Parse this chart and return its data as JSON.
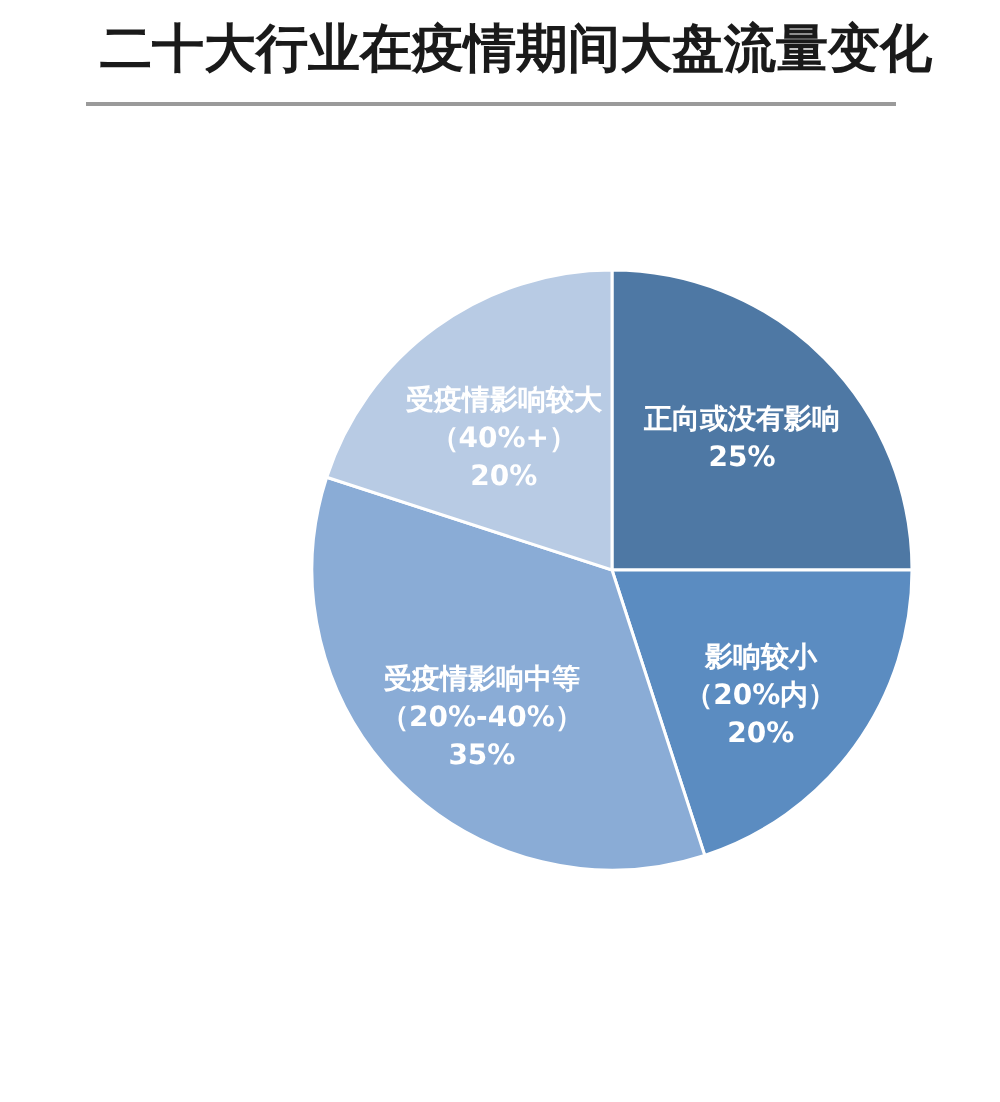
{
  "chart_data": {
    "type": "pie",
    "title": "二十大行业在疫情期间大盘流量变化",
    "categories": [
      "正向或没有影响",
      "影响较小（20%内）",
      "受疫情影响中等（20%-40%）",
      "受疫情影响较大（40%+）"
    ],
    "values": [
      25,
      20,
      35,
      20
    ],
    "value_labels": [
      "25%",
      "20%",
      "35%",
      "20%"
    ],
    "colors": [
      "#4e78a4",
      "#5b8cc1",
      "#8aacd6",
      "#b8cbe4"
    ]
  }
}
